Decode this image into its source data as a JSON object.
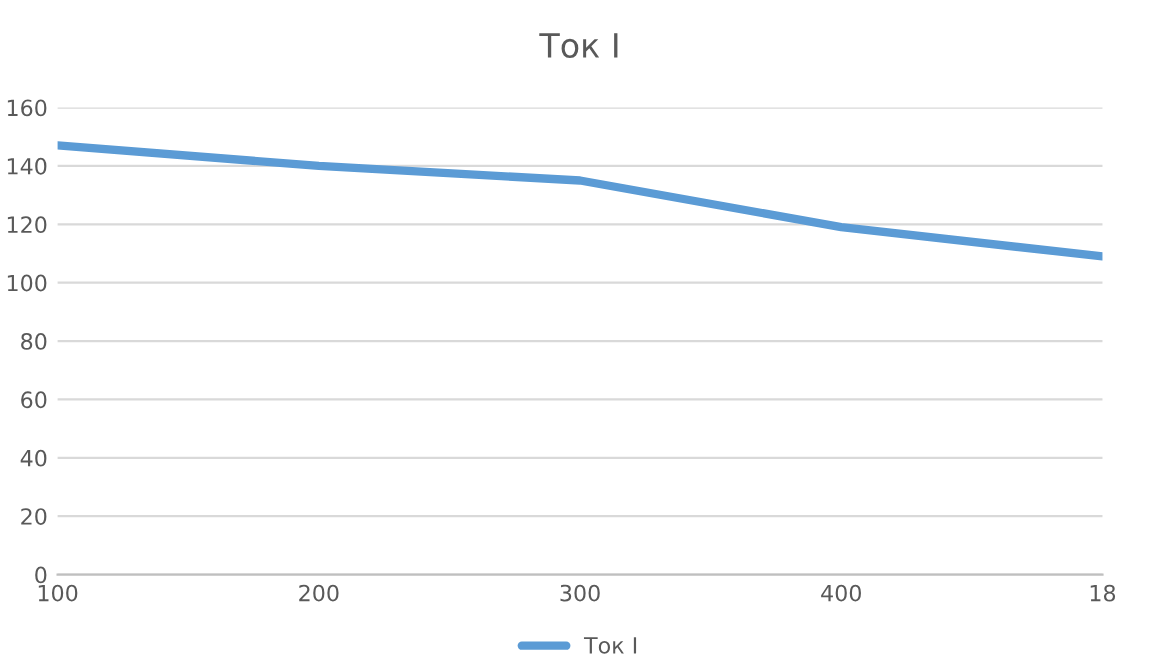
{
  "chart_data": {
    "type": "line",
    "title": "Ток I",
    "categories": [
      "100",
      "200",
      "300",
      "400",
      "18"
    ],
    "series": [
      {
        "name": "Ток I",
        "color": "#5b9bd5",
        "values": [
          147,
          140,
          135,
          119,
          109
        ]
      }
    ],
    "ylim": [
      0,
      160
    ],
    "yticks": [
      0,
      20,
      40,
      60,
      80,
      100,
      120,
      140,
      160
    ],
    "grid": "y",
    "legend": "bottom",
    "marker": "none",
    "line_style": "solid"
  }
}
